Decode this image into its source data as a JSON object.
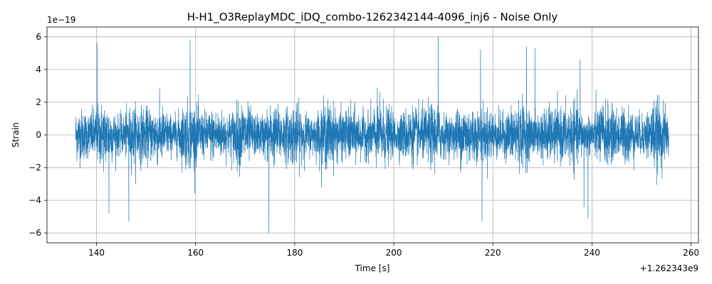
{
  "chart_data": {
    "type": "line",
    "title": "H-H1_O3ReplayMDC_iDQ_combo-1262342144-4096_inj6 - Noise Only",
    "xlabel": "Time [s]",
    "ylabel": "Strain",
    "x_offset_label": "+1.262343e9",
    "y_scale_label": "1e−19",
    "xlim": [
      130,
      261.5
    ],
    "ylim": [
      -6.6,
      6.6
    ],
    "x_ticks": [
      140,
      160,
      180,
      200,
      220,
      240,
      260
    ],
    "y_ticks": [
      -6,
      -4,
      -2,
      0,
      2,
      4,
      6
    ],
    "x_tick_labels": [
      "140",
      "160",
      "180",
      "200",
      "220",
      "240",
      "260"
    ],
    "y_tick_labels": [
      "−6",
      "−4",
      "−2",
      "0",
      "2",
      "4",
      "6"
    ],
    "grid": true,
    "series": [
      {
        "color": "#1f77b4",
        "x_range": [
          135.8,
          255.5
        ],
        "typical_amplitude": 2.2,
        "peaks": [
          {
            "x": 140.1,
            "y": 5.6
          },
          {
            "x": 158.9,
            "y": 5.8
          },
          {
            "x": 209.0,
            "y": 6.0
          },
          {
            "x": 217.5,
            "y": 5.2
          },
          {
            "x": 226.8,
            "y": 5.4
          },
          {
            "x": 228.5,
            "y": 5.3
          },
          {
            "x": 237.6,
            "y": 4.6
          },
          {
            "x": 174.8,
            "y": -6.0
          },
          {
            "x": 146.5,
            "y": -5.3
          },
          {
            "x": 142.5,
            "y": -4.8
          },
          {
            "x": 217.8,
            "y": -5.3
          },
          {
            "x": 239.2,
            "y": -5.1
          },
          {
            "x": 238.4,
            "y": -4.4
          }
        ]
      }
    ]
  }
}
